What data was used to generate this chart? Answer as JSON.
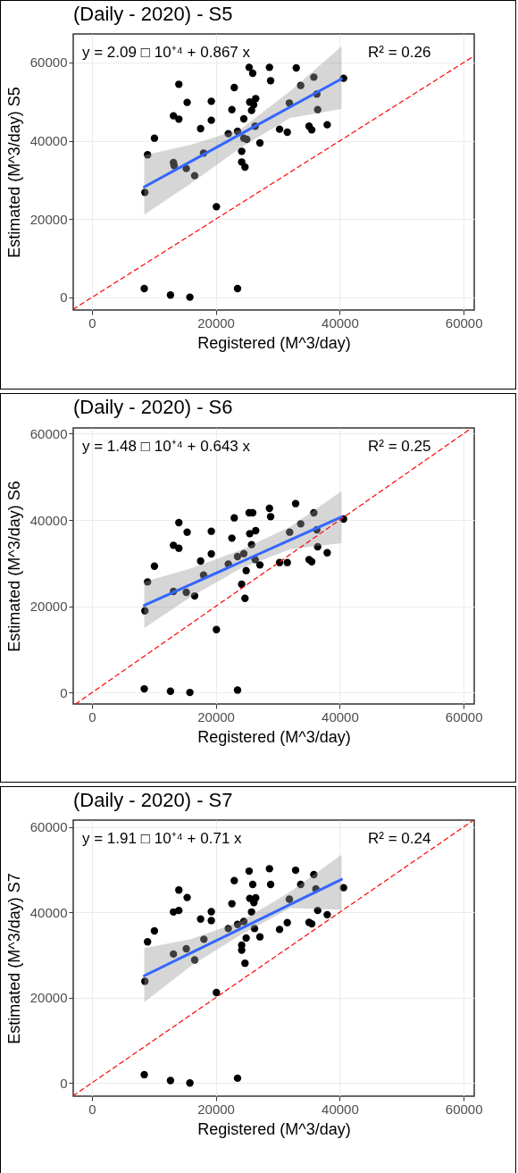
{
  "chart_data": [
    {
      "type": "scatter",
      "title": "(Daily - 2020) - S5",
      "xlabel": "Registered (M^3/day)",
      "ylabel": "Estimated (M^3/day) S5",
      "xlim": [
        -3000,
        61700
      ],
      "ylim": [
        -3200,
        67300
      ],
      "xticks": [
        0,
        20000,
        40000,
        60000
      ],
      "yticks": [
        0,
        20000,
        40000,
        60000
      ],
      "grid": true,
      "annotations": [
        "y = 2.09 □ 10⁺⁴ + 0.867 x",
        "R² = 0.26"
      ],
      "series": [
        {
          "marker": "circle",
          "color": "#000000",
          "x": [
            8460,
            12690,
            15820,
            23510,
            8560,
            8990,
            10100,
            13170,
            14040,
            14040,
            15380,
            13170,
            13270,
            15240,
            16590,
            17550,
            18030,
            19280,
            19280,
            20100,
            22020,
            22600,
            22980,
            23510,
            24180,
            24180,
            24710,
            24520,
            24520,
            25000,
            25380,
            25960,
            25480,
            26110,
            26440,
            25770,
            26350,
            27120,
            28660,
            28850,
            30290,
            31540,
            31870,
            32980,
            33700,
            35050,
            35480,
            35820,
            36300,
            36440,
            37980,
            40620
          ],
          "values": [
            2280,
            610,
            80,
            2280,
            26840,
            36430,
            40680,
            46390,
            45550,
            54450,
            49810,
            34450,
            33700,
            32930,
            31100,
            43120,
            36880,
            50110,
            45250,
            23190,
            41830,
            47980,
            53610,
            42430,
            37340,
            34600,
            33310,
            45630,
            40680,
            40380,
            58780,
            57260,
            49890,
            49200,
            50800,
            47760,
            43730,
            39470,
            58780,
            55360,
            42970,
            42210,
            49660,
            58630,
            54140,
            43730,
            42810,
            56270,
            51940,
            47980,
            44110,
            55970
          ]
        },
        {
          "type": "line",
          "color": "#3366ff",
          "x": [
            8460,
            16000,
            24000,
            32000,
            40290
          ],
          "values": [
            28230,
            34770,
            41710,
            48640,
            55830
          ],
          "lower": [
            21140,
            29130,
            38250,
            45860,
            48140
          ],
          "upper": [
            36350,
            39010,
            42970,
            52700,
            64100
          ]
        },
        {
          "type": "line",
          "color": "#ff0000",
          "line_style": "dashed",
          "x": [
            -3000,
            61700
          ],
          "values": [
            -3000,
            61700
          ]
        }
      ]
    },
    {
      "type": "scatter",
      "title": "(Daily - 2020) - S6",
      "xlabel": "Registered (M^3/day)",
      "ylabel": "Estimated (M^3/day) S6",
      "xlim": [
        -3000,
        61700
      ],
      "ylim": [
        -2600,
        61300
      ],
      "xticks": [
        0,
        20000,
        40000,
        60000
      ],
      "yticks": [
        0,
        20000,
        40000,
        60000
      ],
      "grid": true,
      "annotations": [
        "y = 1.48 □ 10⁺⁴ + 0.643 x",
        "R² = 0.25"
      ],
      "series": [
        {
          "marker": "circle",
          "color": "#000000",
          "x": [
            8460,
            12690,
            15820,
            23510,
            8560,
            8990,
            10100,
            13170,
            14040,
            14040,
            15380,
            13170,
            15240,
            16590,
            17550,
            18030,
            19280,
            19280,
            20100,
            22020,
            22600,
            22980,
            23510,
            24180,
            24710,
            24520,
            24900,
            25380,
            25960,
            25480,
            26440,
            25770,
            26350,
            27120,
            28660,
            28850,
            30290,
            31540,
            31920,
            32880,
            33700,
            35050,
            35480,
            35820,
            36300,
            36440,
            37980,
            40620
          ],
          "values": [
            900,
            340,
            70,
            620,
            18970,
            25660,
            29310,
            34140,
            33450,
            39380,
            37170,
            23450,
            23240,
            22410,
            30480,
            27240,
            37380,
            32140,
            14620,
            29790,
            35790,
            40480,
            31520,
            25100,
            21860,
            32210,
            28280,
            41660,
            41660,
            36830,
            37520,
            34280,
            30830,
            29590,
            42690,
            40760,
            30140,
            30140,
            37170,
            43790,
            39100,
            30830,
            30340,
            41660,
            37720,
            33790,
            32410,
            40210
          ]
        },
        {
          "type": "line",
          "color": "#3366ff",
          "x": [
            8460,
            16000,
            24000,
            32000,
            40290
          ],
          "values": [
            20240,
            25090,
            30230,
            35380,
            40710
          ],
          "lower": [
            14970,
            22210,
            28760,
            33240,
            34620
          ],
          "upper": [
            25660,
            28760,
            33030,
            38410,
            46690
          ]
        },
        {
          "type": "line",
          "color": "#ff0000",
          "line_style": "dashed",
          "x": [
            -2600,
            61300
          ],
          "values": [
            -2600,
            61300
          ]
        }
      ]
    },
    {
      "type": "scatter",
      "title": "(Daily - 2020) - S7",
      "xlabel": "Registered (M^3/day)",
      "ylabel": "Estimated (M^3/day) S7",
      "xlim": [
        -3000,
        61700
      ],
      "ylim": [
        -3100,
        61600
      ],
      "xticks": [
        0,
        20000,
        40000,
        60000
      ],
      "yticks": [
        0,
        20000,
        40000,
        60000
      ],
      "grid": true,
      "annotations": [
        "y = 1.91 □ 10⁺⁴ + 0.71 x",
        "R² = 0.24"
      ],
      "series": [
        {
          "marker": "circle",
          "color": "#000000",
          "x": [
            8460,
            12690,
            15820,
            23510,
            8560,
            8990,
            10100,
            13170,
            14040,
            14040,
            15380,
            13170,
            15240,
            16590,
            17550,
            18080,
            19280,
            19280,
            20100,
            22020,
            22600,
            22980,
            23510,
            24180,
            24180,
            24710,
            24520,
            24900,
            25380,
            25960,
            25480,
            26440,
            26150,
            25770,
            26250,
            27120,
            28660,
            28850,
            30290,
            31540,
            31870,
            32880,
            33700,
            35050,
            35480,
            35820,
            36150,
            36440,
            37980,
            40620
          ],
          "values": [
            1940,
            560,
            0,
            1110,
            23820,
            33060,
            35630,
            40070,
            40420,
            45210,
            43470,
            30210,
            31460,
            28820,
            38400,
            33680,
            40140,
            38060,
            21180,
            36180,
            42010,
            47430,
            37150,
            32290,
            31110,
            28060,
            37850,
            33960,
            49650,
            46530,
            43260,
            43400,
            42290,
            40070,
            36180,
            34240,
            50210,
            46530,
            35970,
            37570,
            43060,
            49860,
            46530,
            37640,
            37290,
            48820,
            45490,
            40420,
            39440,
            45760
          ]
        },
        {
          "type": "line",
          "color": "#3366ff",
          "x": [
            8460,
            16000,
            24000,
            32000,
            40290
          ],
          "values": [
            25110,
            30460,
            36140,
            41820,
            47710
          ],
          "lower": [
            18960,
            27430,
            34720,
            40970,
            40630
          ],
          "upper": [
            31600,
            33680,
            37850,
            44790,
            53470
          ]
        },
        {
          "type": "line",
          "color": "#ff0000",
          "line_style": "dashed",
          "x": [
            -3000,
            61600
          ],
          "values": [
            -3000,
            61600
          ]
        }
      ]
    }
  ]
}
